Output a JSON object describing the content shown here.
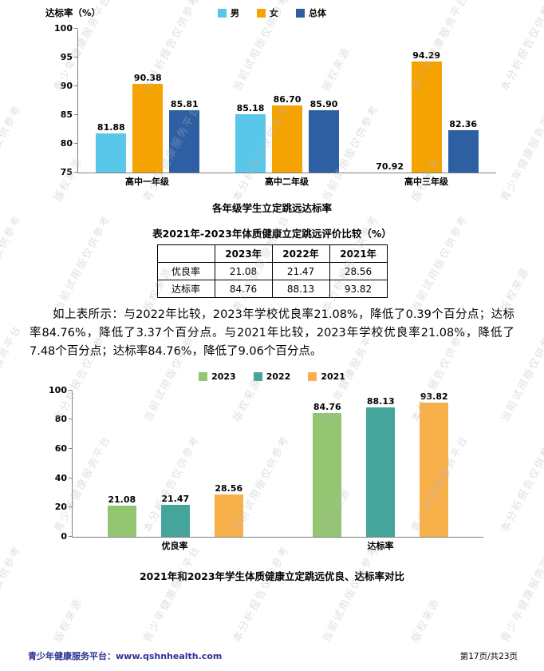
{
  "watermark": {
    "phrases": [
      "青少年健康服务平台",
      "本分析报告仅供参考",
      "当前试用版仅供参考",
      "版权来源"
    ]
  },
  "chart_data": [
    {
      "type": "bar",
      "title": "各年级学生立定跳远达标率",
      "ylabel": "达标率（%）",
      "ylim": [
        75,
        100
      ],
      "yticks": [
        75,
        80,
        85,
        90,
        95,
        100
      ],
      "categories": [
        "高中一年级",
        "高中二年级",
        "高中三年级"
      ],
      "series": [
        {
          "name": "男",
          "color": "#58C7EA",
          "values": [
            "81.88",
            "85.18",
            "70.92"
          ]
        },
        {
          "name": "女",
          "color": "#F5A302",
          "values": [
            "90.38",
            "86.70",
            "94.29"
          ]
        },
        {
          "name": "总体",
          "color": "#2E5FA3",
          "values": [
            "85.81",
            "85.90",
            "82.36"
          ]
        }
      ],
      "legend_position": "top",
      "grid": false
    },
    {
      "type": "bar",
      "title": "2021年和2023年学生体质健康立定跳远优良、达标率对比",
      "ylabel": "",
      "ylim": [
        0,
        100
      ],
      "yticks": [
        0,
        20,
        40,
        60,
        80,
        100
      ],
      "categories": [
        "优良率",
        "达标率"
      ],
      "series": [
        {
          "name": "2023",
          "color": "#93C572",
          "values": [
            "21.08",
            "84.76"
          ]
        },
        {
          "name": "2022",
          "color": "#45A49C",
          "values": [
            "21.47",
            "88.13"
          ]
        },
        {
          "name": "2021",
          "color": "#F8B04B",
          "values": [
            "28.56",
            "93.82"
          ]
        }
      ],
      "legend_position": "top",
      "grid": false
    }
  ],
  "table": {
    "title": "表2021年-2023年体质健康立定跳远评价比较（%）",
    "headers": [
      "",
      "2023年",
      "2022年",
      "2021年"
    ],
    "rows": [
      {
        "label": "优良率",
        "values": [
          "21.08",
          "21.47",
          "28.56"
        ]
      },
      {
        "label": "达标率",
        "values": [
          "84.76",
          "88.13",
          "93.82"
        ]
      }
    ]
  },
  "paragraph": "如上表所示：与2022年比较，2023年学校优良率21.08%，降低了0.39个百分点；达标率84.76%，降低了3.37个百分点。与2021年比较，2023年学校优良率21.08%，降低了7.48个百分点；达标率84.76%，降低了9.06个百分点。",
  "footer": {
    "left": "青少年健康服务平台：www.qshnhealth.com",
    "right": "第17页/共23页"
  }
}
